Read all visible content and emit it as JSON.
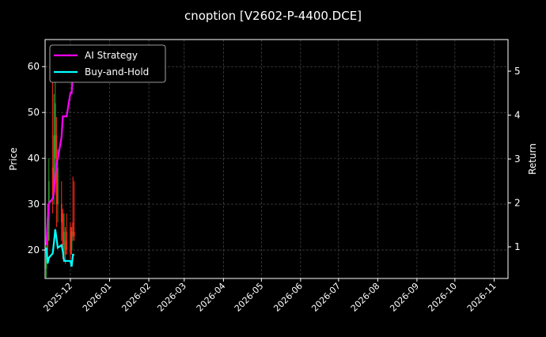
{
  "chart_data": {
    "type": "line",
    "title": "cnoption [V2602-P-4400.DCE]",
    "ylabel": "Price",
    "y2label": "Return",
    "xlim": [
      "2025-11-11",
      "2026-11-12"
    ],
    "ylim": [
      13.8,
      65.9
    ],
    "y2lim": [
      0.28,
      5.72
    ],
    "grid": true,
    "legend_placement": "top-left",
    "x_ticks": [
      "2025-12",
      "2026-01",
      "2026-02",
      "2026-03",
      "2026-04",
      "2026-05",
      "2026-06",
      "2026-07",
      "2026-08",
      "2026-09",
      "2026-10",
      "2026-11"
    ],
    "y_ticks": [
      20,
      30,
      40,
      50,
      60
    ],
    "y2_ticks": [
      1,
      2,
      3,
      4,
      5
    ],
    "dates": [
      "2025-11-12",
      "2025-11-13",
      "2025-11-14",
      "2025-11-17",
      "2025-11-18",
      "2025-11-19",
      "2025-11-20",
      "2025-11-21",
      "2025-11-24",
      "2025-11-25",
      "2025-11-26",
      "2025-11-27",
      "2025-11-28",
      "2025-12-01",
      "2025-12-02",
      "2025-12-03",
      "2025-12-04"
    ],
    "candles": {
      "open": [
        16,
        24,
        22,
        38,
        32,
        40,
        45,
        30,
        30,
        28,
        20,
        22,
        24,
        25,
        20,
        26,
        24
      ],
      "high": [
        21,
        30,
        40,
        58,
        54,
        62,
        49,
        42,
        35,
        29,
        28,
        25,
        28,
        26,
        25,
        36,
        35
      ],
      "low": [
        14,
        17,
        22,
        28,
        30,
        35,
        25,
        26,
        22,
        18,
        18,
        17,
        19,
        18,
        19,
        22,
        22
      ],
      "close": [
        20,
        20,
        35,
        32,
        45,
        52,
        30,
        38,
        26,
        21,
        24,
        19,
        20,
        19,
        24,
        23,
        23
      ],
      "up_color": "#2ca02c",
      "down_color": "#ff2a1a"
    },
    "series": [
      {
        "name": "AI Strategy",
        "axis": "right",
        "color": "#ff00ff",
        "values": [
          1.04,
          1.6,
          1.99,
          2.1,
          2.24,
          2.6,
          2.9,
          3.0,
          3.5,
          3.97,
          3.97,
          3.97,
          3.97,
          4.5,
          4.5,
          5.0,
          5.3
        ]
      },
      {
        "name": "Buy-and-Hold",
        "axis": "right",
        "color": "#00ffff",
        "values": [
          0.98,
          0.62,
          0.75,
          0.85,
          1.1,
          1.4,
          1.2,
          0.98,
          1.04,
          0.9,
          0.68,
          0.68,
          0.68,
          0.68,
          0.55,
          0.82,
          0.82
        ]
      }
    ]
  }
}
